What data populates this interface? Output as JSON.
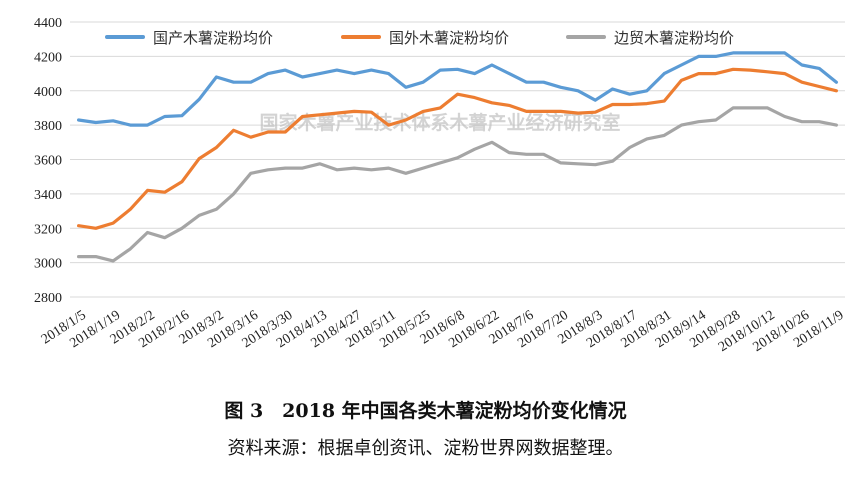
{
  "chart_data": {
    "type": "line",
    "ylim": [
      2800,
      4400
    ],
    "yticks": [
      2800,
      3000,
      3200,
      3400,
      3600,
      3800,
      4000,
      4200,
      4400
    ],
    "grid": true,
    "legend_position": "top",
    "xticks": [
      "2018/1/5",
      "2018/1/19",
      "2018/2/2",
      "2018/2/16",
      "2018/3/2",
      "2018/3/16",
      "2018/3/30",
      "2018/4/13",
      "2018/4/27",
      "2018/5/11",
      "2018/5/25",
      "2018/6/8",
      "2018/6/22",
      "2018/7/6",
      "2018/7/20",
      "2018/8/3",
      "2018/8/17",
      "2018/8/31",
      "2018/9/14",
      "2018/9/28",
      "2018/10/12",
      "2018/10/26",
      "2018/11/9"
    ],
    "series": [
      {
        "name": "国产木薯淀粉均价",
        "color": "#5b9bd5",
        "values": [
          3830,
          3815,
          3825,
          3800,
          3800,
          3850,
          3855,
          3950,
          4080,
          4050,
          4050,
          4100,
          4120,
          4080,
          4100,
          4120,
          4100,
          4120,
          4100,
          4020,
          4050,
          4120,
          4125,
          4100,
          4150,
          4100,
          4050,
          4050,
          4020,
          4000,
          3945,
          4010,
          3980,
          4000,
          4100,
          4150,
          4200,
          4200,
          4220,
          4220,
          4220,
          4220,
          4150,
          4130,
          4050
        ]
      },
      {
        "name": "国外木薯淀粉均价",
        "color": "#ed7d31",
        "values": [
          3215,
          3200,
          3230,
          3310,
          3420,
          3410,
          3470,
          3605,
          3670,
          3770,
          3730,
          3760,
          3760,
          3850,
          3860,
          3870,
          3880,
          3875,
          3800,
          3830,
          3880,
          3900,
          3980,
          3960,
          3930,
          3915,
          3880,
          3880,
          3880,
          3870,
          3875,
          3920,
          3920,
          3925,
          3940,
          4060,
          4100,
          4100,
          4125,
          4120,
          4110,
          4100,
          4050,
          4025,
          4000
        ]
      },
      {
        "name": "边贸木薯淀粉均价",
        "color": "#a5a5a5",
        "values": [
          3035,
          3035,
          3010,
          3080,
          3175,
          3145,
          3200,
          3275,
          3310,
          3400,
          3520,
          3540,
          3550,
          3550,
          3575,
          3540,
          3550,
          3540,
          3550,
          3520,
          3550,
          3580,
          3610,
          3660,
          3700,
          3640,
          3630,
          3630,
          3580,
          3575,
          3570,
          3590,
          3670,
          3720,
          3740,
          3800,
          3820,
          3830,
          3900,
          3900,
          3900,
          3850,
          3820,
          3820,
          3800
        ]
      }
    ]
  },
  "watermark": "国家木薯产业技术体系木薯产业经济研究室",
  "caption": {
    "title": "图 3　2018 年中国各类木薯淀粉均价变化情况",
    "source": "资料来源：根据卓创资讯、淀粉世界网数据整理。"
  }
}
